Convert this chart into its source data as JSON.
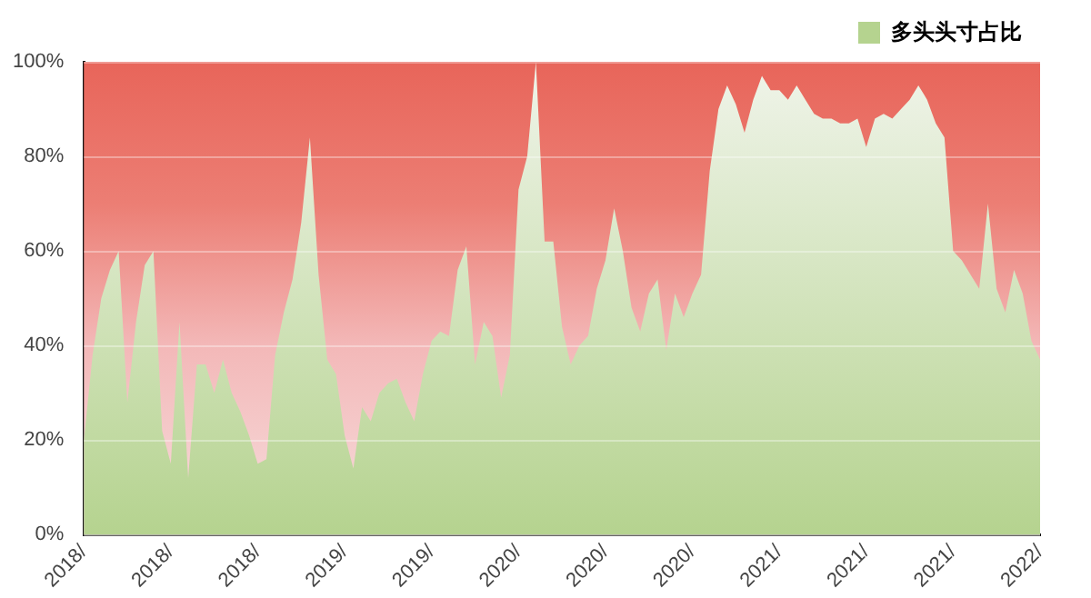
{
  "chart_data": {
    "type": "area",
    "categories": [
      "2018/",
      null,
      null,
      null,
      null,
      null,
      null,
      null,
      null,
      null,
      "2018/",
      null,
      null,
      null,
      null,
      null,
      null,
      null,
      null,
      null,
      "2018/",
      null,
      null,
      null,
      null,
      null,
      null,
      null,
      null,
      null,
      "2019/",
      null,
      null,
      null,
      null,
      null,
      null,
      null,
      null,
      null,
      "2019/",
      null,
      null,
      null,
      null,
      null,
      null,
      null,
      null,
      null,
      "2020/",
      null,
      null,
      null,
      null,
      null,
      null,
      null,
      null,
      null,
      "2020/",
      null,
      null,
      null,
      null,
      null,
      null,
      null,
      null,
      null,
      "2020/",
      null,
      null,
      null,
      null,
      null,
      null,
      null,
      null,
      null,
      "2021/",
      null,
      null,
      null,
      null,
      null,
      null,
      null,
      null,
      null,
      "2021/",
      null,
      null,
      null,
      null,
      null,
      null,
      null,
      null,
      null,
      "2021/",
      null,
      null,
      null,
      null,
      null,
      null,
      null,
      null,
      null,
      "2022/"
    ],
    "series": [
      {
        "name": "多头头寸占比",
        "color": "#b5d38f",
        "values": [
          20,
          38,
          50,
          56,
          60,
          28,
          45,
          57,
          60,
          22,
          15,
          45,
          12,
          36,
          36,
          30,
          37,
          30,
          26,
          21,
          15,
          16,
          38,
          47,
          54,
          66,
          84,
          55,
          37,
          34,
          21,
          14,
          27,
          24,
          30,
          32,
          33,
          28,
          24,
          34,
          41,
          43,
          42,
          56,
          61,
          36,
          45,
          42,
          29,
          38,
          73,
          80,
          100,
          62,
          62,
          44,
          36,
          40,
          42,
          52,
          58,
          69,
          60,
          48,
          43,
          51,
          54,
          39,
          51,
          46,
          51,
          55,
          77,
          90,
          95,
          91,
          85,
          92,
          97,
          94,
          94,
          92,
          95,
          92,
          89,
          88,
          88,
          87,
          87,
          88,
          82,
          88,
          89,
          88,
          90,
          92,
          95,
          92,
          87,
          84,
          60,
          58,
          55,
          52,
          70,
          52,
          47,
          56,
          51,
          41,
          37
        ]
      }
    ],
    "ylim": [
      0,
      100
    ],
    "yticks": [
      {
        "value": 0,
        "label": "0%"
      },
      {
        "value": 20,
        "label": "20%"
      },
      {
        "value": 40,
        "label": "40%"
      },
      {
        "value": 60,
        "label": "60%"
      },
      {
        "value": 80,
        "label": "80%"
      },
      {
        "value": 100,
        "label": "100%"
      }
    ],
    "grid": "y",
    "legend": "top right",
    "marker": "none"
  }
}
